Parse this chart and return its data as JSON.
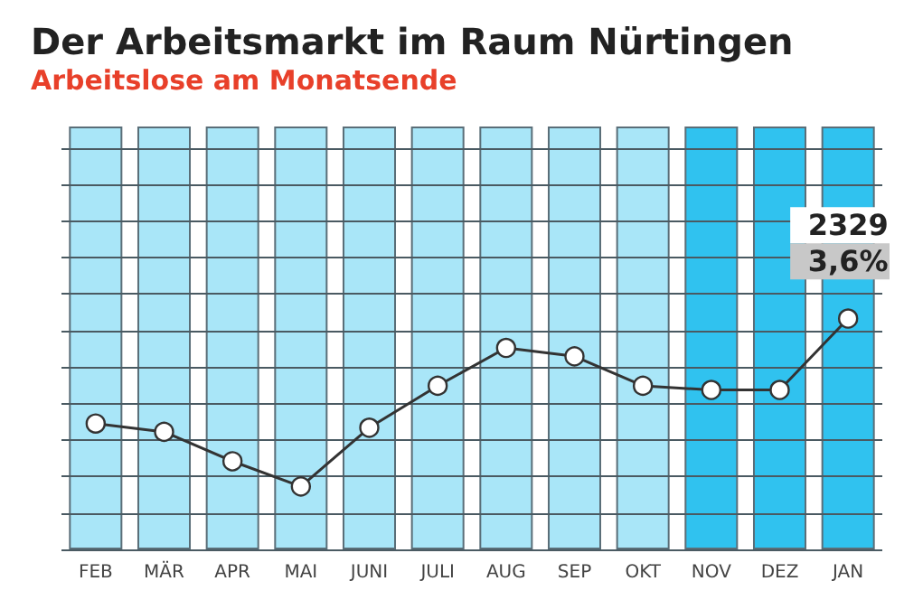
{
  "chart_data": {
    "type": "bar",
    "title": "Der Arbeitsmarkt im Raum Nürtingen",
    "subtitle": "Arbeitslose am Monatsende",
    "categories": [
      "FEB",
      "MÄR",
      "APR",
      "MAI",
      "JUNI",
      "JULI",
      "AUG",
      "SEP",
      "OKT",
      "NOV",
      "DEZ",
      "JAN"
    ],
    "grid": "y",
    "tick_labels": "x",
    "ylim": [
      0,
      4267
    ],
    "yticks": [
      {
        "value": 0,
        "label": null
      },
      {
        "value": 368,
        "label": null
      },
      {
        "value": 736,
        "label": null
      },
      {
        "value": 1104,
        "label": null
      },
      {
        "value": 1472,
        "label": null
      },
      {
        "value": 1840,
        "label": null
      },
      {
        "value": 2208,
        "label": null
      },
      {
        "value": 2576,
        "label": null
      },
      {
        "value": 2944,
        "label": null
      },
      {
        "value": 3312,
        "label": null
      },
      {
        "value": 3680,
        "label": null
      },
      {
        "value": 4048,
        "label": null
      }
    ],
    "series": [
      {
        "colors": [
          "#a9e6f8",
          "#a9e6f8",
          "#a9e6f8",
          "#a9e6f8",
          "#a9e6f8",
          "#a9e6f8",
          "#a9e6f8",
          "#a9e6f8",
          "#a9e6f8",
          "#30c2ef",
          "#30c2ef",
          "#30c2ef"
        ],
        "values": [
          4267,
          4267,
          4267,
          4267,
          4267,
          4267,
          4267,
          4267,
          4267,
          4267,
          4267,
          4267
        ]
      },
      {
        "type": "line",
        "color": "#333333",
        "marker": "circle",
        "values": [
          1270,
          1186,
          889,
          635,
          1228,
          1651,
          2033,
          1948,
          1651,
          1609,
          1609,
          2329
        ],
        "value_labels": [
          null,
          null,
          null,
          null,
          null,
          null,
          null,
          null,
          null,
          null,
          null,
          "2329"
        ]
      }
    ],
    "annotations": [
      "3,6%"
    ]
  }
}
